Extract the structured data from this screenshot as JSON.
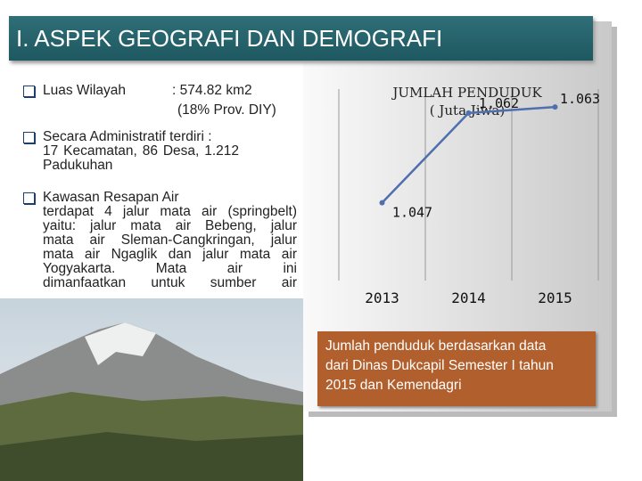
{
  "header": {
    "title": "I. ASPEK GEOGRAFI DAN DEMOGRAFI"
  },
  "items": [
    {
      "label": "Luas Wilayah",
      "value": ": 574.82 km2",
      "detail": "(18% Prov. DIY)"
    },
    {
      "label": "Secara Administratif terdiri :",
      "lines": [
        "17 Kecamatan, 86 Desa, 1.212",
        "Padukuhan"
      ]
    },
    {
      "label": "Kawasan Resapan Air",
      "lines": [
        "terdapat 4 jalur mata air (springbelt)",
        "yaitu: jalur mata air Bebeng, jalur",
        "mata air Sleman-Cangkringan, jalur",
        "mata air Ngaglik dan jalur mata air",
        "Yogyakarta. Mata air ini",
        "dimanfaatkan untuk sumber air"
      ]
    }
  ],
  "chart_data": {
    "type": "line",
    "title": "JUMLAH PENDUDUK",
    "subtitle": "( Juta Jiwa)",
    "categories": [
      "2013",
      "2014",
      "2015"
    ],
    "series": [
      {
        "color": "#4f6fae",
        "values": [
          1.047,
          1.062,
          1.063
        ]
      }
    ],
    "ylim": [
      1.034,
      1.066
    ],
    "grid": true
  },
  "note": {
    "lines": [
      "Jumlah penduduk berdasarkan data",
      "dari Dinas Dukcapil Semester I tahun",
      "2015 dan Kemendagri"
    ]
  }
}
